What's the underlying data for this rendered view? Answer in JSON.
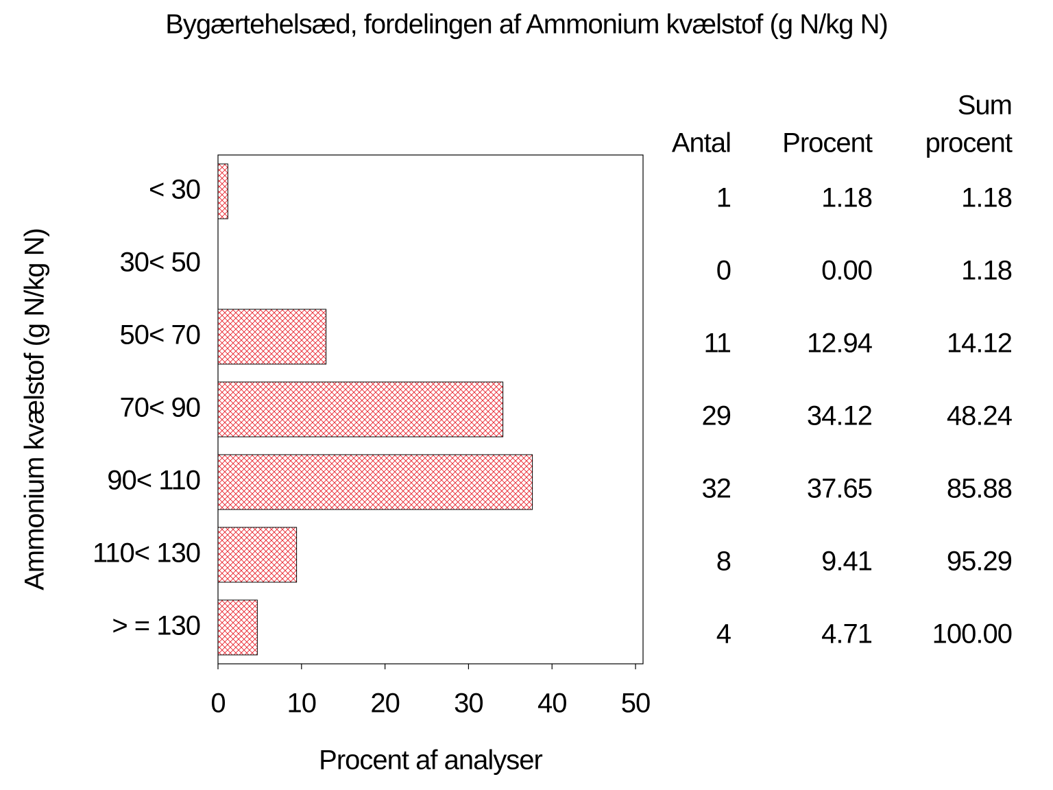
{
  "chart_data": {
    "type": "barh",
    "title": "Bygærtehelsæd, fordelingen af Ammonium kvælstof (g N/kg N)",
    "x_label": "Procent af analyser",
    "y_label": "Ammonium kvælstof (g N/kg N)",
    "categories": [
      "< 30",
      "30< 50",
      "50< 70",
      "70< 90",
      "90< 110",
      "110< 130",
      "> = 130"
    ],
    "values": [
      1.18,
      0,
      12.94,
      34.12,
      37.65,
      9.41,
      4.71
    ],
    "value_labels": [
      "1.18",
      "0.00",
      "12.94",
      "34.12",
      "37.65",
      "9.41",
      "4.71"
    ],
    "counts": [
      1,
      0,
      11,
      29,
      32,
      8,
      4
    ],
    "cumulative": [
      1.18,
      1.18,
      14.12,
      48.24,
      85.88,
      95.29,
      100
    ],
    "cumulative_labels": [
      "1.18",
      "1.18",
      "14.12",
      "48.24",
      "85.88",
      "95.29",
      "100.00"
    ],
    "column_headers": [
      [
        "Antal"
      ],
      [
        "Procent"
      ],
      [
        "Sum",
        "procent"
      ]
    ],
    "color": "#e8202a",
    "xlim": [
      0,
      50.9
    ],
    "xticks": [
      0,
      10,
      20,
      30,
      40,
      50
    ]
  }
}
